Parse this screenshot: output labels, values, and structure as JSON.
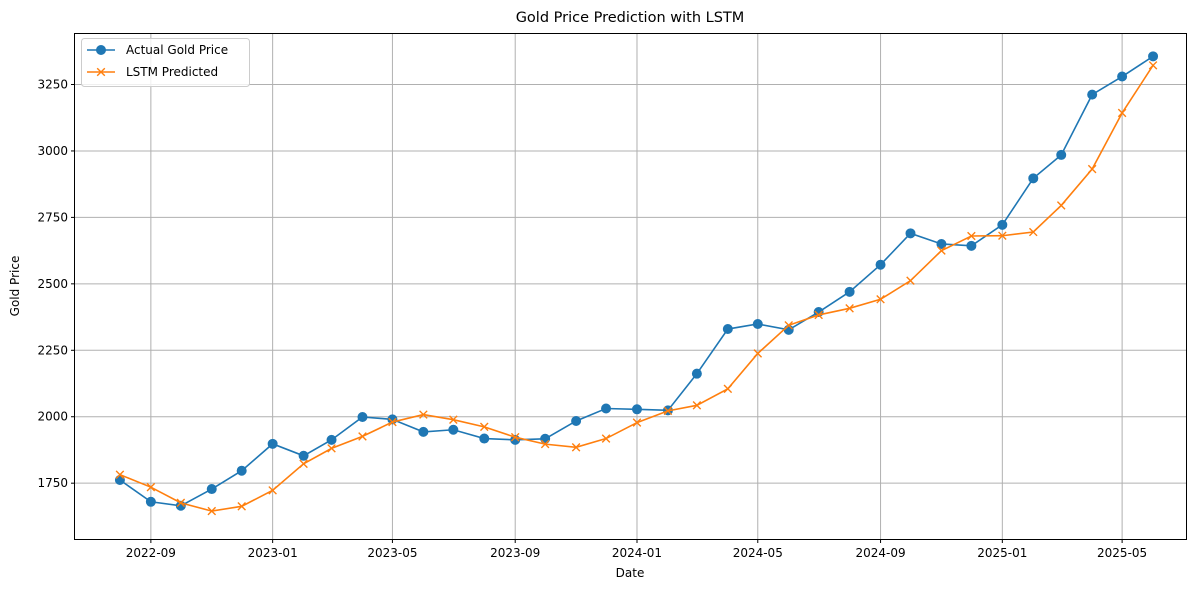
{
  "chart_data": {
    "type": "line",
    "title": "Gold Price Prediction with LSTM",
    "xlabel": "Date",
    "ylabel": "Gold Price",
    "grid": true,
    "legend_position": "top-left",
    "xlim": [
      "2022-06-17",
      "2025-07-04"
    ],
    "ylim": [
      1540,
      3440
    ],
    "x_ticks": [
      "2022-09",
      "2023-01",
      "2023-05",
      "2023-09",
      "2024-01",
      "2024-05",
      "2024-09",
      "2025-01",
      "2025-05"
    ],
    "y_ticks": [
      1750,
      2000,
      2250,
      2500,
      2750,
      3000,
      3250
    ],
    "x": [
      "2022-08-01",
      "2022-09-01",
      "2022-10-01",
      "2022-11-01",
      "2022-12-01",
      "2023-01-01",
      "2023-02-01",
      "2023-03-01",
      "2023-04-01",
      "2023-05-01",
      "2023-06-01",
      "2023-07-01",
      "2023-08-01",
      "2023-09-01",
      "2023-10-01",
      "2023-11-01",
      "2023-12-01",
      "2024-01-01",
      "2024-02-01",
      "2024-03-01",
      "2024-04-01",
      "2024-05-01",
      "2024-06-01",
      "2024-07-01",
      "2024-08-01",
      "2024-09-01",
      "2024-10-01",
      "2024-11-01",
      "2024-12-01",
      "2025-01-01",
      "2025-02-01",
      "2025-03-01",
      "2025-04-01",
      "2025-05-01",
      "2025-06-01"
    ],
    "series": [
      {
        "name": "Actual Gold Price",
        "color": "#1f77b4",
        "marker": "circle",
        "values": [
          1762,
          1680,
          1665,
          1728,
          1797,
          1898,
          1853,
          1913,
          1999,
          1990,
          1943,
          1951,
          1918,
          1913,
          1917,
          1984,
          2031,
          2028,
          2024,
          2162,
          2330,
          2349,
          2327,
          2394,
          2470,
          2572,
          2690,
          2650,
          2643,
          2722,
          2897,
          2985,
          3212,
          3280,
          3356
        ]
      },
      {
        "name": "LSTM Predicted",
        "color": "#ff7f0e",
        "marker": "x",
        "values": [
          1782,
          1735,
          1676,
          1645,
          1663,
          1723,
          1823,
          1881,
          1926,
          1980,
          2008,
          1989,
          1962,
          1923,
          1897,
          1885,
          1918,
          1978,
          2022,
          2043,
          2105,
          2238,
          2344,
          2383,
          2408,
          2442,
          2512,
          2625,
          2680,
          2681,
          2695,
          2795,
          2932,
          3143,
          3322
        ]
      }
    ]
  }
}
